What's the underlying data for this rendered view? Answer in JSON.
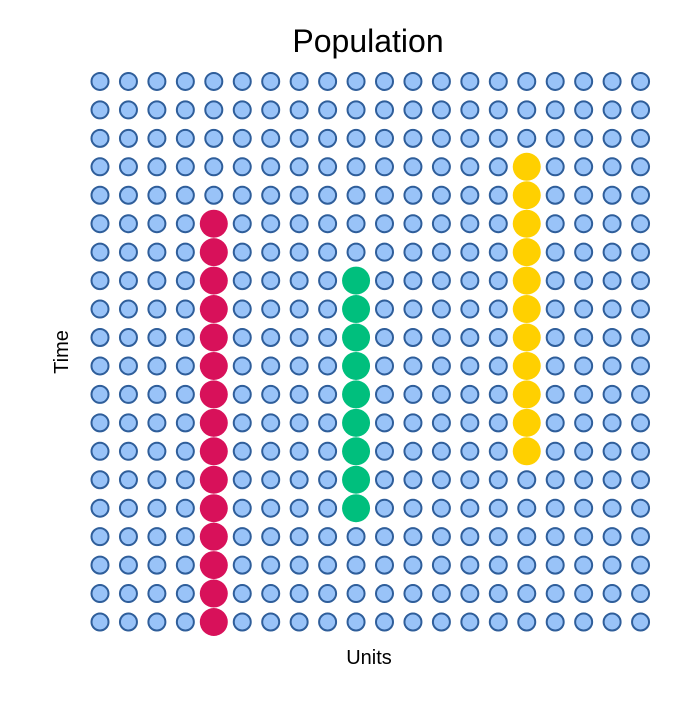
{
  "chart_data": {
    "type": "scatter",
    "title": "Population",
    "xlabel": "Units",
    "ylabel": "Time",
    "grid": false,
    "legend": "none",
    "grid_columns": 20,
    "grid_rows": 20,
    "base_fill": "#99C3F8",
    "base_stroke": "#2F5E9A",
    "series": [
      {
        "color": "#D8115A",
        "column": 5,
        "row_start": 1,
        "row_end": 15
      },
      {
        "color": "#00BF7D",
        "column": 10,
        "row_start": 5,
        "row_end": 13
      },
      {
        "color": "#FFD000",
        "column": 16,
        "row_start": 7,
        "row_end": 17
      }
    ]
  }
}
